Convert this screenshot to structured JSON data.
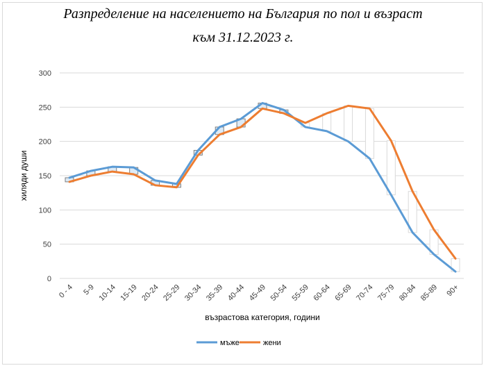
{
  "chart_data": {
    "type": "line",
    "title": "Разпределение на населението на България по пол и възраст",
    "subtitle": "към 31.12.2023 г.",
    "xlabel": "възрастова категория, години",
    "ylabel": "хиляди души",
    "ylim": [
      0,
      300
    ],
    "yticks": [
      0,
      50,
      100,
      150,
      200,
      250,
      300
    ],
    "grid": true,
    "legend_position": "bottom",
    "categories": [
      "0 - 4",
      "5-9",
      "10-14",
      "15-19",
      "20-24",
      "25-29",
      "30-34",
      "35-39",
      "40-44",
      "45-49",
      "50-54",
      "55-59",
      "60-64",
      "65-69",
      "70-74",
      "75-79",
      "80-84",
      "85-89",
      "90+"
    ],
    "series": [
      {
        "name": "мъже",
        "color": "#5B9BD5",
        "values": [
          147,
          157,
          163,
          162,
          143,
          138,
          187,
          221,
          233,
          256,
          246,
          221,
          215,
          200,
          175,
          122,
          67,
          35,
          10
        ]
      },
      {
        "name": "жени",
        "color": "#ED7D31",
        "values": [
          141,
          150,
          156,
          152,
          136,
          133,
          180,
          210,
          221,
          248,
          241,
          227,
          241,
          252,
          248,
          201,
          127,
          71,
          29
        ]
      }
    ],
    "high_low_bars": true
  }
}
